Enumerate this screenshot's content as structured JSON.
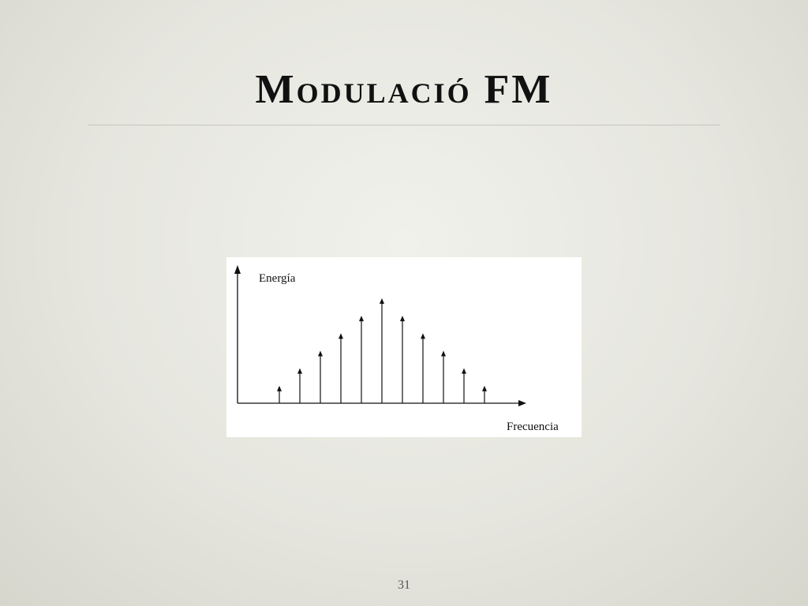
{
  "slide": {
    "title": "Modulació FM",
    "page_number": "31"
  },
  "figure": {
    "ylabel": "Energía",
    "xlabel": "Frecuencia",
    "spectral_lines": {
      "description_values": [
        0.2,
        0.4,
        0.6,
        0.8,
        1.0,
        1.2,
        1.0,
        0.8,
        0.6,
        0.4,
        0.2
      ],
      "note": ""
    }
  }
}
